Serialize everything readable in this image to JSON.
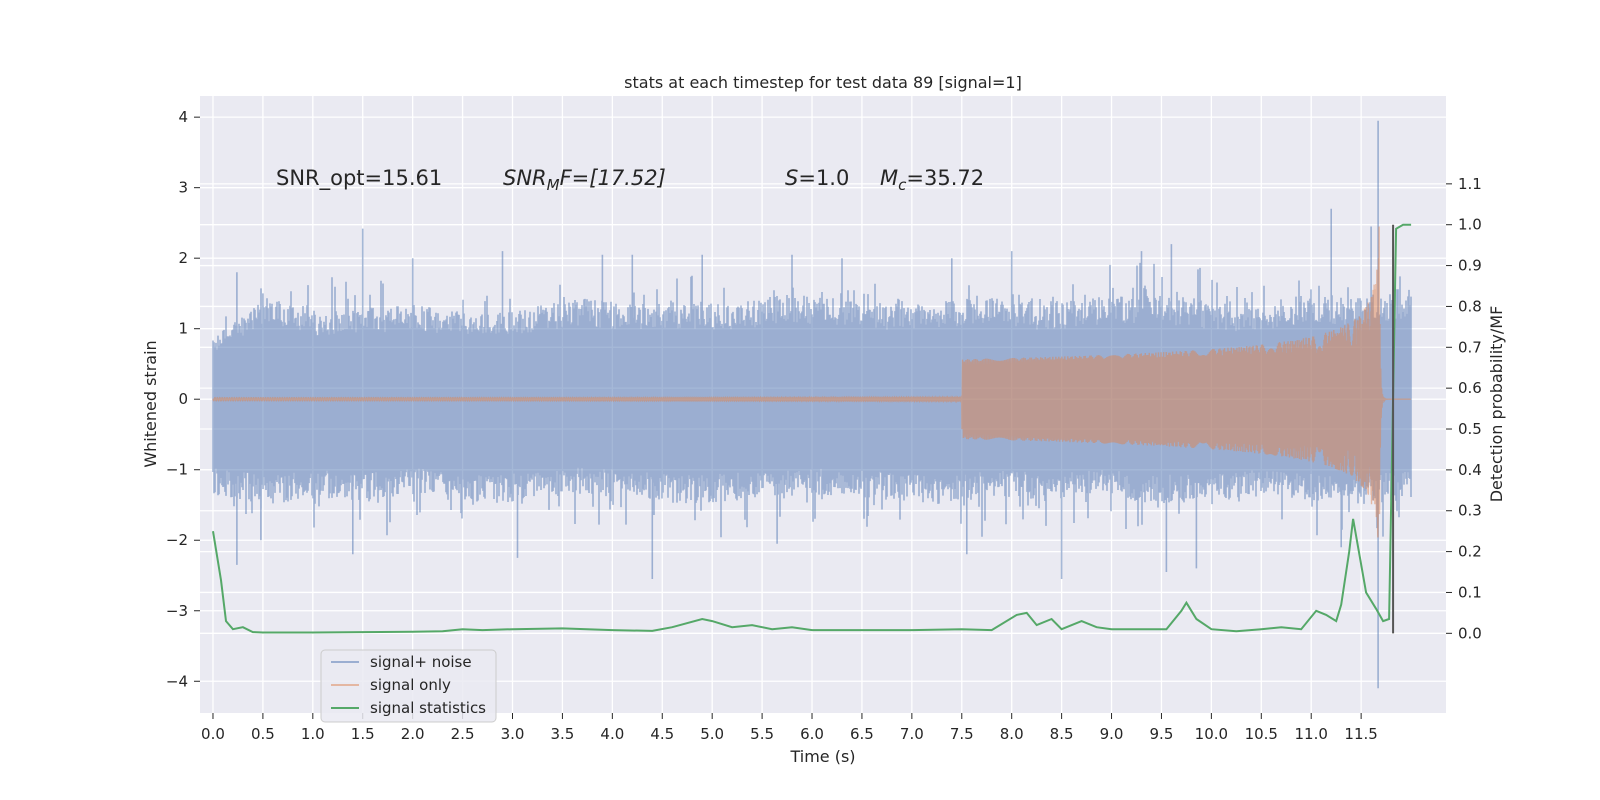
{
  "chart_data": {
    "type": "line",
    "title": "stats at each timestep for test data 89 [signal=1]",
    "xlabel": "Time (s)",
    "ylabel": "Whitened strain",
    "y2label": "Detection probability/MF",
    "xlim": [
      -0.13,
      12.35
    ],
    "ylim": [
      -4.45,
      4.3
    ],
    "y2lim": [
      -0.195,
      1.315
    ],
    "x_ticks": [
      "0.0",
      "0.5",
      "1.0",
      "1.5",
      "2.0",
      "2.5",
      "3.0",
      "3.5",
      "4.0",
      "4.5",
      "5.0",
      "5.5",
      "6.0",
      "6.5",
      "7.0",
      "7.5",
      "8.0",
      "8.5",
      "9.0",
      "9.5",
      "10.0",
      "10.5",
      "11.0",
      "11.5"
    ],
    "y_ticks": [
      -4,
      -3,
      -2,
      -1,
      0,
      1,
      2,
      3,
      4
    ],
    "y2_ticks": [
      "0.0",
      "0.1",
      "0.2",
      "0.3",
      "0.4",
      "0.5",
      "0.6",
      "0.7",
      "0.8",
      "0.9",
      "1.0",
      "1.1"
    ],
    "grid": true,
    "legend_position": "lower-left",
    "annotations": {
      "snr_opt": "SNR_opt=15.61",
      "snr_mf_base": "SNR",
      "snr_mf_sub": "M",
      "snr_mf_rest": "F=[17.52]",
      "s_var": "S",
      "s_rest": "=1.0",
      "mc_var": "M",
      "mc_sub": "c",
      "mc_rest": "=35.72"
    },
    "vertical_line": {
      "x": 11.82,
      "y2_range": [
        0.0,
        1.0
      ],
      "color": "#555555"
    },
    "series": [
      {
        "name": "signal+ noise",
        "color": "#4c72b0",
        "x_range": [
          0.0,
          12.0
        ],
        "band_top": [
          0.9,
          1.45,
          1.25,
          1.3,
          1.35,
          1.2,
          1.3,
          1.45,
          1.35,
          1.4,
          1.35,
          1.5,
          1.45,
          1.35,
          1.4,
          1.45,
          1.35,
          1.45,
          1.5,
          1.4,
          1.3,
          1.5,
          1.45,
          1.6
        ],
        "band_bottom": [
          -1.35,
          -1.5,
          -1.4,
          -1.45,
          -1.35,
          -1.5,
          -1.45,
          -1.35,
          -1.4,
          -1.5,
          -1.45,
          -1.4,
          -1.35,
          -1.45,
          -1.5,
          -1.4,
          -1.45,
          -1.35,
          -1.5,
          -1.45,
          -1.4,
          -1.45,
          -1.5,
          -1.4
        ],
        "peaks": [
          [
            0.24,
            1.8
          ],
          [
            0.5,
            1.5
          ],
          [
            1.5,
            2.42
          ],
          [
            2.0,
            2.0
          ],
          [
            2.9,
            2.1
          ],
          [
            3.9,
            2.05
          ],
          [
            4.2,
            2.05
          ],
          [
            4.9,
            2.05
          ],
          [
            5.8,
            2.05
          ],
          [
            6.3,
            2.0
          ],
          [
            7.4,
            2.0
          ],
          [
            8.0,
            2.1
          ],
          [
            9.3,
            2.1
          ],
          [
            9.6,
            2.2
          ],
          [
            11.2,
            2.7
          ],
          [
            11.6,
            2.45
          ],
          [
            11.67,
            3.95
          ]
        ],
        "troughs": [
          [
            0.24,
            -2.35
          ],
          [
            0.48,
            -2.0
          ],
          [
            1.4,
            -2.2
          ],
          [
            3.05,
            -2.25
          ],
          [
            4.4,
            -2.55
          ],
          [
            5.65,
            -2.05
          ],
          [
            7.55,
            -2.2
          ],
          [
            8.5,
            -2.55
          ],
          [
            9.55,
            -2.45
          ],
          [
            9.85,
            -2.4
          ],
          [
            11.3,
            -2.1
          ],
          [
            11.67,
            -4.1
          ]
        ]
      },
      {
        "name": "signal only",
        "color": "#dd8452",
        "x_range": [
          0.0,
          12.0
        ],
        "chirp_start": 7.5,
        "merger_time": 11.68,
        "peak_amplitude": 2.45
      },
      {
        "name": "signal statistics",
        "color": "#55a868",
        "axis": "right",
        "x": [
          0.0,
          0.08,
          0.13,
          0.2,
          0.3,
          0.4,
          0.5,
          1.0,
          1.5,
          2.0,
          2.3,
          2.5,
          2.7,
          3.0,
          3.5,
          4.0,
          4.4,
          4.6,
          4.9,
          5.0,
          5.2,
          5.4,
          5.6,
          5.8,
          6.0,
          6.5,
          7.0,
          7.5,
          7.8,
          8.05,
          8.15,
          8.25,
          8.4,
          8.5,
          8.7,
          8.85,
          9.0,
          9.3,
          9.55,
          9.7,
          9.75,
          9.85,
          10.0,
          10.25,
          10.5,
          10.7,
          10.9,
          11.05,
          11.15,
          11.25,
          11.3,
          11.38,
          11.42,
          11.55,
          11.65,
          11.72,
          11.78,
          11.85,
          11.92,
          12.0
        ],
        "y": [
          0.25,
          0.13,
          0.03,
          0.01,
          0.015,
          0.003,
          0.002,
          0.002,
          0.003,
          0.004,
          0.005,
          0.01,
          0.008,
          0.01,
          0.012,
          0.008,
          0.006,
          0.015,
          0.035,
          0.03,
          0.015,
          0.02,
          0.01,
          0.015,
          0.008,
          0.008,
          0.008,
          0.01,
          0.008,
          0.045,
          0.05,
          0.02,
          0.035,
          0.01,
          0.03,
          0.015,
          0.01,
          0.01,
          0.01,
          0.055,
          0.075,
          0.035,
          0.01,
          0.005,
          0.01,
          0.015,
          0.01,
          0.055,
          0.045,
          0.03,
          0.07,
          0.2,
          0.28,
          0.1,
          0.06,
          0.03,
          0.035,
          0.99,
          1.0,
          1.0
        ]
      }
    ]
  }
}
